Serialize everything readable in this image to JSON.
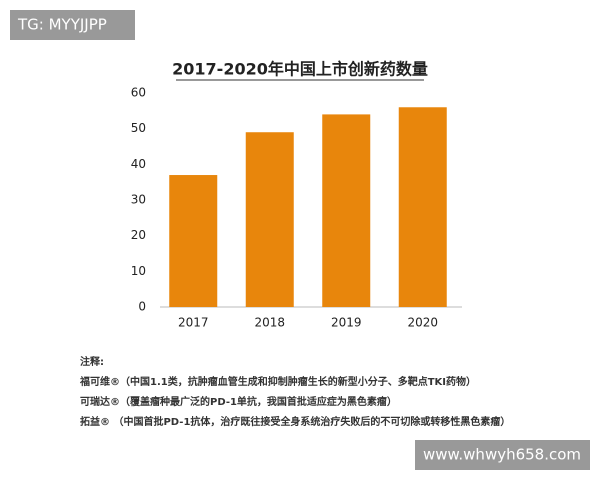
{
  "watermarks": [
    "TG: MYYJJPP",
    "www.whwyh658.com"
  ],
  "chart_data": {
    "type": "bar",
    "title": "2017-2020年中国上市创新药数量",
    "categories": [
      "2017",
      "2018",
      "2019",
      "2020"
    ],
    "values": [
      37,
      49,
      54,
      56
    ],
    "color": "#e8860c",
    "ylim": [
      0,
      60
    ],
    "yticks": [
      0,
      10,
      20,
      30,
      40,
      50,
      60
    ],
    "grid": false,
    "notes": [
      "注释:",
      "福可维®（中国1.1类，抗肿瘤血管生成和抑制肿瘤生长的新型小分子、多靶点TKI药物）",
      "可瑞达®（覆盖瘤种最广泛的PD-1单抗，我国首批适应症为黑色素瘤）",
      "拓益® （中国首批PD-1抗体，治疗既往接受全身系统治疗失败后的不可切除或转移性黑色素瘤）"
    ]
  }
}
